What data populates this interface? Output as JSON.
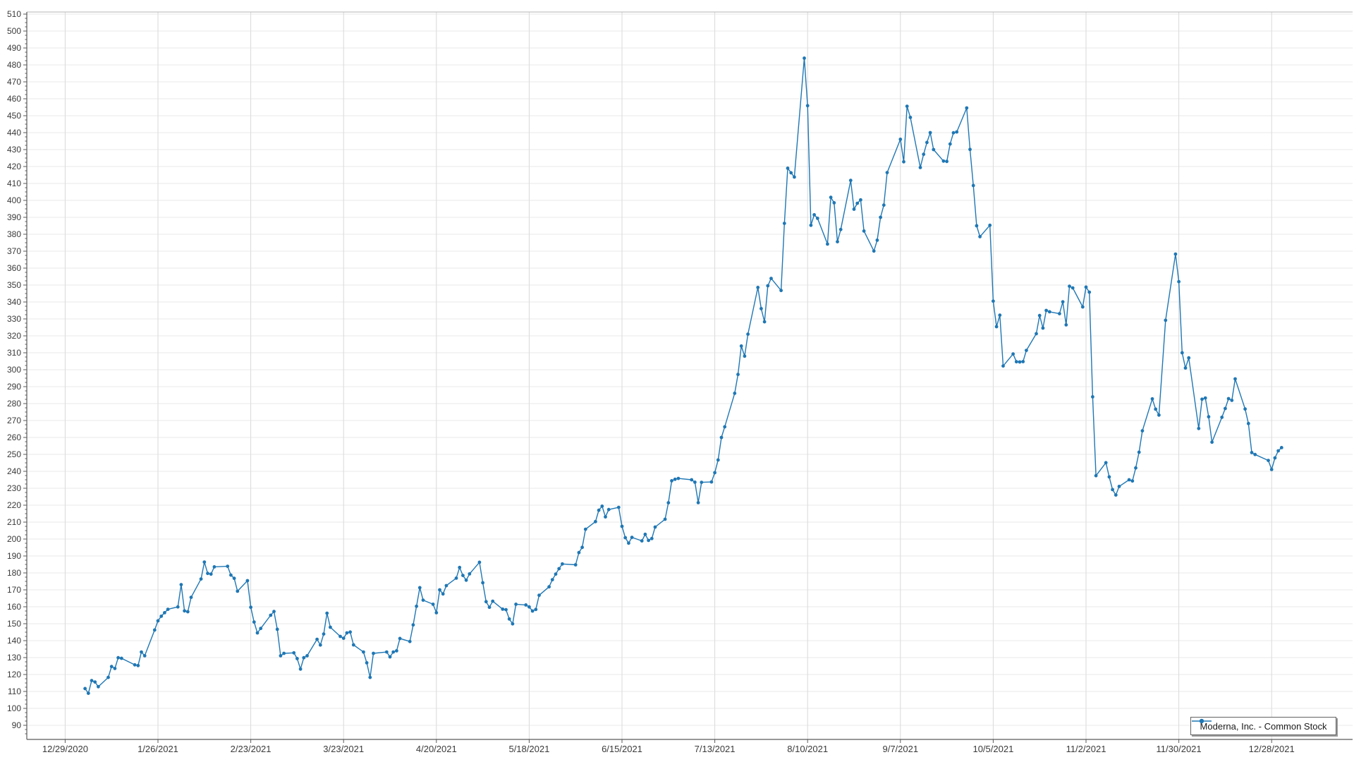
{
  "chart_data": {
    "type": "line",
    "title": "",
    "xlabel": "",
    "ylabel": "",
    "grid": true,
    "legend": {
      "label": "Moderna, Inc. - Common Stock",
      "position": "bottom-right"
    },
    "series_color": "#1f77b4",
    "y_axis": {
      "min": 90,
      "max": 510,
      "tick_step": 10,
      "minor_tick_step": 2.5,
      "ticks": [
        90,
        100,
        110,
        120,
        130,
        140,
        150,
        160,
        170,
        180,
        190,
        200,
        210,
        220,
        230,
        240,
        250,
        260,
        270,
        280,
        290,
        300,
        310,
        320,
        330,
        340,
        350,
        360,
        370,
        380,
        390,
        400,
        410,
        420,
        430,
        440,
        450,
        460,
        470,
        480,
        490,
        500,
        510
      ]
    },
    "x_axis": {
      "start_date": "2020-12-29",
      "tick_interval_days": 28,
      "tick_labels": [
        "12/29/2020",
        "1/26/2021",
        "2/23/2021",
        "3/23/2021",
        "4/20/2021",
        "5/18/2021",
        "6/15/2021",
        "7/13/2021",
        "8/10/2021",
        "9/7/2021",
        "10/5/2021",
        "11/2/2021",
        "11/30/2021",
        "12/28/2021"
      ]
    },
    "series": [
      {
        "name": "Moderna, Inc. - Common Stock",
        "points": [
          [
            "2021-01-04",
            111.7
          ],
          [
            "2021-01-05",
            108.9
          ],
          [
            "2021-01-06",
            116.4
          ],
          [
            "2021-01-07",
            115.6
          ],
          [
            "2021-01-08",
            112.8
          ],
          [
            "2021-01-11",
            118.3
          ],
          [
            "2021-01-12",
            124.7
          ],
          [
            "2021-01-13",
            123.6
          ],
          [
            "2021-01-14",
            129.9
          ],
          [
            "2021-01-15",
            129.6
          ],
          [
            "2021-01-19",
            125.7
          ],
          [
            "2021-01-20",
            125.3
          ],
          [
            "2021-01-21",
            133.3
          ],
          [
            "2021-01-22",
            131.1
          ],
          [
            "2021-01-25",
            146.3
          ],
          [
            "2021-01-26",
            151.7
          ],
          [
            "2021-01-27",
            154.4
          ],
          [
            "2021-01-28",
            156.5
          ],
          [
            "2021-01-29",
            158.5
          ],
          [
            "2021-02-01",
            159.9
          ],
          [
            "2021-02-02",
            173.1
          ],
          [
            "2021-02-03",
            157.6
          ],
          [
            "2021-02-04",
            157.1
          ],
          [
            "2021-02-05",
            165.6
          ],
          [
            "2021-02-08",
            176.4
          ],
          [
            "2021-02-09",
            186.4
          ],
          [
            "2021-02-10",
            179.7
          ],
          [
            "2021-02-11",
            179.3
          ],
          [
            "2021-02-12",
            183.6
          ],
          [
            "2021-02-16",
            183.9
          ],
          [
            "2021-02-17",
            178.7
          ],
          [
            "2021-02-18",
            176.8
          ],
          [
            "2021-02-19",
            169.2
          ],
          [
            "2021-02-22",
            175.4
          ],
          [
            "2021-02-23",
            159.7
          ],
          [
            "2021-02-24",
            151.0
          ],
          [
            "2021-02-25",
            144.6
          ],
          [
            "2021-02-26",
            147.2
          ],
          [
            "2021-03-01",
            155.0
          ],
          [
            "2021-03-02",
            157.2
          ],
          [
            "2021-03-03",
            146.7
          ],
          [
            "2021-03-04",
            131.1
          ],
          [
            "2021-03-05",
            132.5
          ],
          [
            "2021-03-08",
            132.8
          ],
          [
            "2021-03-09",
            129.4
          ],
          [
            "2021-03-10",
            123.2
          ],
          [
            "2021-03-11",
            129.9
          ],
          [
            "2021-03-12",
            131.1
          ],
          [
            "2021-03-15",
            140.8
          ],
          [
            "2021-03-16",
            137.4
          ],
          [
            "2021-03-17",
            143.9
          ],
          [
            "2021-03-18",
            156.2
          ],
          [
            "2021-03-19",
            147.9
          ],
          [
            "2021-03-22",
            142.5
          ],
          [
            "2021-03-23",
            141.4
          ],
          [
            "2021-03-24",
            144.6
          ],
          [
            "2021-03-25",
            145.1
          ],
          [
            "2021-03-26",
            137.5
          ],
          [
            "2021-03-29",
            133.3
          ],
          [
            "2021-03-30",
            126.9
          ],
          [
            "2021-03-31",
            118.3
          ],
          [
            "2021-04-01",
            132.5
          ],
          [
            "2021-04-05",
            133.3
          ],
          [
            "2021-04-06",
            130.4
          ],
          [
            "2021-04-07",
            133.3
          ],
          [
            "2021-04-08",
            134.0
          ],
          [
            "2021-04-09",
            141.3
          ],
          [
            "2021-04-12",
            139.5
          ],
          [
            "2021-04-13",
            149.3
          ],
          [
            "2021-04-14",
            160.3
          ],
          [
            "2021-04-15",
            171.3
          ],
          [
            "2021-04-16",
            163.9
          ],
          [
            "2021-04-19",
            161.5
          ],
          [
            "2021-04-20",
            156.5
          ],
          [
            "2021-04-21",
            170.0
          ],
          [
            "2021-04-22",
            167.6
          ],
          [
            "2021-04-23",
            172.5
          ],
          [
            "2021-04-26",
            176.9
          ],
          [
            "2021-04-27",
            183.2
          ],
          [
            "2021-04-28",
            178.5
          ],
          [
            "2021-04-29",
            175.7
          ],
          [
            "2021-04-30",
            179.4
          ],
          [
            "2021-05-03",
            186.3
          ],
          [
            "2021-05-04",
            174.2
          ],
          [
            "2021-05-05",
            163.0
          ],
          [
            "2021-05-06",
            159.7
          ],
          [
            "2021-05-07",
            163.3
          ],
          [
            "2021-05-10",
            158.6
          ],
          [
            "2021-05-11",
            158.3
          ],
          [
            "2021-05-12",
            152.8
          ],
          [
            "2021-05-13",
            149.9
          ],
          [
            "2021-05-14",
            161.5
          ],
          [
            "2021-05-17",
            161.1
          ],
          [
            "2021-05-18",
            159.9
          ],
          [
            "2021-05-19",
            157.5
          ],
          [
            "2021-05-20",
            158.4
          ],
          [
            "2021-05-21",
            166.8
          ],
          [
            "2021-05-24",
            171.8
          ],
          [
            "2021-05-25",
            176.0
          ],
          [
            "2021-05-26",
            179.3
          ],
          [
            "2021-05-27",
            182.5
          ],
          [
            "2021-05-28",
            185.3
          ],
          [
            "2021-06-01",
            184.8
          ],
          [
            "2021-06-02",
            192.0
          ],
          [
            "2021-06-03",
            195.1
          ],
          [
            "2021-06-04",
            205.8
          ],
          [
            "2021-06-07",
            210.3
          ],
          [
            "2021-06-08",
            217.0
          ],
          [
            "2021-06-09",
            219.4
          ],
          [
            "2021-06-10",
            213.1
          ],
          [
            "2021-06-11",
            217.4
          ],
          [
            "2021-06-14",
            218.7
          ],
          [
            "2021-06-15",
            207.5
          ],
          [
            "2021-06-16",
            200.8
          ],
          [
            "2021-06-17",
            197.6
          ],
          [
            "2021-06-18",
            201.0
          ],
          [
            "2021-06-21",
            198.9
          ],
          [
            "2021-06-22",
            202.8
          ],
          [
            "2021-06-23",
            199.2
          ],
          [
            "2021-06-24",
            200.3
          ],
          [
            "2021-06-25",
            207.1
          ],
          [
            "2021-06-28",
            211.7
          ],
          [
            "2021-06-29",
            221.4
          ],
          [
            "2021-06-30",
            234.4
          ],
          [
            "2021-07-01",
            235.3
          ],
          [
            "2021-07-02",
            235.8
          ],
          [
            "2021-07-06",
            235.0
          ],
          [
            "2021-07-07",
            233.6
          ],
          [
            "2021-07-08",
            221.5
          ],
          [
            "2021-07-09",
            233.5
          ],
          [
            "2021-07-12",
            233.7
          ],
          [
            "2021-07-13",
            239.2
          ],
          [
            "2021-07-14",
            246.7
          ],
          [
            "2021-07-15",
            260.0
          ],
          [
            "2021-07-16",
            266.3
          ],
          [
            "2021-07-19",
            286.1
          ],
          [
            "2021-07-20",
            297.2
          ],
          [
            "2021-07-21",
            314.0
          ],
          [
            "2021-07-22",
            308.0
          ],
          [
            "2021-07-23",
            321.0
          ],
          [
            "2021-07-26",
            348.6
          ],
          [
            "2021-07-27",
            336.1
          ],
          [
            "2021-07-28",
            328.3
          ],
          [
            "2021-07-29",
            349.6
          ],
          [
            "2021-07-30",
            353.9
          ],
          [
            "2021-08-02",
            346.8
          ],
          [
            "2021-08-03",
            386.4
          ],
          [
            "2021-08-04",
            419.0
          ],
          [
            "2021-08-05",
            416.3
          ],
          [
            "2021-08-06",
            413.8
          ],
          [
            "2021-08-09",
            484.0
          ],
          [
            "2021-08-10",
            455.9
          ],
          [
            "2021-08-11",
            385.3
          ],
          [
            "2021-08-12",
            391.5
          ],
          [
            "2021-08-13",
            389.4
          ],
          [
            "2021-08-16",
            374.2
          ],
          [
            "2021-08-17",
            401.8
          ],
          [
            "2021-08-18",
            398.6
          ],
          [
            "2021-08-19",
            375.6
          ],
          [
            "2021-08-20",
            382.8
          ],
          [
            "2021-08-23",
            411.8
          ],
          [
            "2021-08-24",
            394.8
          ],
          [
            "2021-08-25",
            398.3
          ],
          [
            "2021-08-26",
            400.3
          ],
          [
            "2021-08-27",
            381.9
          ],
          [
            "2021-08-30",
            370.1
          ],
          [
            "2021-08-31",
            376.5
          ],
          [
            "2021-09-01",
            390.0
          ],
          [
            "2021-09-02",
            397.2
          ],
          [
            "2021-09-03",
            416.4
          ],
          [
            "2021-09-07",
            436.1
          ],
          [
            "2021-09-08",
            422.8
          ],
          [
            "2021-09-09",
            455.6
          ],
          [
            "2021-09-10",
            449.0
          ],
          [
            "2021-09-13",
            419.4
          ],
          [
            "2021-09-14",
            427.2
          ],
          [
            "2021-09-15",
            434.2
          ],
          [
            "2021-09-16",
            440.0
          ],
          [
            "2021-09-17",
            430.0
          ],
          [
            "2021-09-20",
            423.2
          ],
          [
            "2021-09-21",
            423.0
          ],
          [
            "2021-09-22",
            433.3
          ],
          [
            "2021-09-23",
            439.9
          ],
          [
            "2021-09-24",
            440.4
          ],
          [
            "2021-09-27",
            454.6
          ],
          [
            "2021-09-28",
            430.1
          ],
          [
            "2021-09-29",
            408.8
          ],
          [
            "2021-09-30",
            385.0
          ],
          [
            "2021-10-01",
            378.6
          ],
          [
            "2021-10-04",
            385.3
          ],
          [
            "2021-10-05",
            340.5
          ],
          [
            "2021-10-06",
            325.4
          ],
          [
            "2021-10-07",
            332.2
          ],
          [
            "2021-10-08",
            302.2
          ],
          [
            "2021-10-11",
            309.3
          ],
          [
            "2021-10-12",
            304.7
          ],
          [
            "2021-10-13",
            304.6
          ],
          [
            "2021-10-14",
            304.8
          ],
          [
            "2021-10-15",
            311.4
          ],
          [
            "2021-10-18",
            321.3
          ],
          [
            "2021-10-19",
            332.0
          ],
          [
            "2021-10-20",
            324.6
          ],
          [
            "2021-10-21",
            335.0
          ],
          [
            "2021-10-22",
            334.2
          ],
          [
            "2021-10-25",
            333.1
          ],
          [
            "2021-10-26",
            340.1
          ],
          [
            "2021-10-27",
            326.5
          ],
          [
            "2021-10-28",
            349.3
          ],
          [
            "2021-10-29",
            348.3
          ],
          [
            "2021-11-01",
            337.1
          ],
          [
            "2021-11-02",
            348.8
          ],
          [
            "2021-11-03",
            345.8
          ],
          [
            "2021-11-04",
            284.0
          ],
          [
            "2021-11-05",
            237.4
          ],
          [
            "2021-11-08",
            245.1
          ],
          [
            "2021-11-09",
            236.7
          ],
          [
            "2021-11-10",
            229.2
          ],
          [
            "2021-11-11",
            226.0
          ],
          [
            "2021-11-12",
            231.1
          ],
          [
            "2021-11-15",
            235.0
          ],
          [
            "2021-11-16",
            234.3
          ],
          [
            "2021-11-17",
            242.0
          ],
          [
            "2021-11-18",
            251.3
          ],
          [
            "2021-11-19",
            263.9
          ],
          [
            "2021-11-22",
            282.8
          ],
          [
            "2021-11-23",
            276.7
          ],
          [
            "2021-11-24",
            273.2
          ],
          [
            "2021-11-26",
            329.2
          ],
          [
            "2021-11-29",
            368.3
          ],
          [
            "2021-11-30",
            352.0
          ],
          [
            "2021-12-01",
            310.0
          ],
          [
            "2021-12-02",
            301.0
          ],
          [
            "2021-12-03",
            307.0
          ],
          [
            "2021-12-06",
            265.3
          ],
          [
            "2021-12-07",
            282.6
          ],
          [
            "2021-12-08",
            283.3
          ],
          [
            "2021-12-09",
            272.2
          ],
          [
            "2021-12-10",
            257.2
          ],
          [
            "2021-12-13",
            271.9
          ],
          [
            "2021-12-14",
            277.1
          ],
          [
            "2021-12-15",
            282.9
          ],
          [
            "2021-12-16",
            281.9
          ],
          [
            "2021-12-17",
            294.6
          ],
          [
            "2021-12-20",
            276.8
          ],
          [
            "2021-12-21",
            268.2
          ],
          [
            "2021-12-22",
            251.1
          ],
          [
            "2021-12-23",
            249.9
          ],
          [
            "2021-12-27",
            246.4
          ],
          [
            "2021-12-28",
            241.1
          ],
          [
            "2021-12-29",
            247.9
          ],
          [
            "2021-12-30",
            252.1
          ],
          [
            "2021-12-31",
            254.0
          ]
        ]
      }
    ],
    "style": {
      "line_color": "#1f77b4",
      "marker_color": "#1f77b4",
      "h_gridline_color": "#eaeaea",
      "v_gridline_color": "#d9d9d9",
      "axis_color": "#5a5a5a",
      "border_color": "#b5b5b5",
      "tick_label_color": "#3a3a3a"
    }
  }
}
